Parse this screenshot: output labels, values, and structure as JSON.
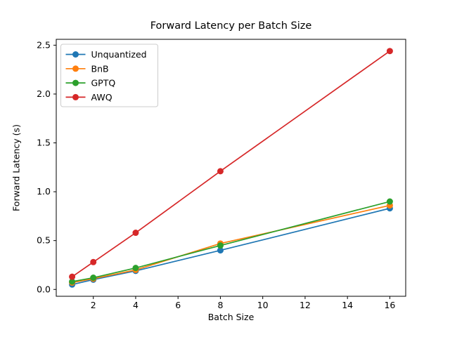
{
  "figure": {
    "background": "#ffffff"
  },
  "chart_data": {
    "type": "line",
    "title": "Forward Latency per Batch Size",
    "xlabel": "Batch Size",
    "ylabel": "Forward Latency (s)",
    "x": [
      1,
      2,
      4,
      8,
      16
    ],
    "series": [
      {
        "name": "Unquantized",
        "color": "#1f77b4",
        "values": [
          0.05,
          0.1,
          0.19,
          0.4,
          0.83
        ]
      },
      {
        "name": "BnB",
        "color": "#ff7f0e",
        "values": [
          0.07,
          0.11,
          0.2,
          0.47,
          0.86
        ]
      },
      {
        "name": "GPTQ",
        "color": "#2ca02c",
        "values": [
          0.08,
          0.12,
          0.22,
          0.45,
          0.9
        ]
      },
      {
        "name": "AWQ",
        "color": "#d62728",
        "values": [
          0.13,
          0.28,
          0.58,
          1.21,
          2.44
        ]
      }
    ],
    "xticks": [
      2,
      4,
      6,
      8,
      10,
      12,
      14,
      16
    ],
    "yticks": [
      "0.0",
      "0.5",
      "1.0",
      "1.5",
      "2.0",
      "2.5"
    ],
    "xlim": [
      0.25,
      16.75
    ],
    "ylim": [
      -0.07,
      2.56
    ],
    "grid": false,
    "legend_position": "upper left",
    "marker": "o",
    "axis_color": "#000000",
    "legend_border_color": "#cccccc"
  }
}
